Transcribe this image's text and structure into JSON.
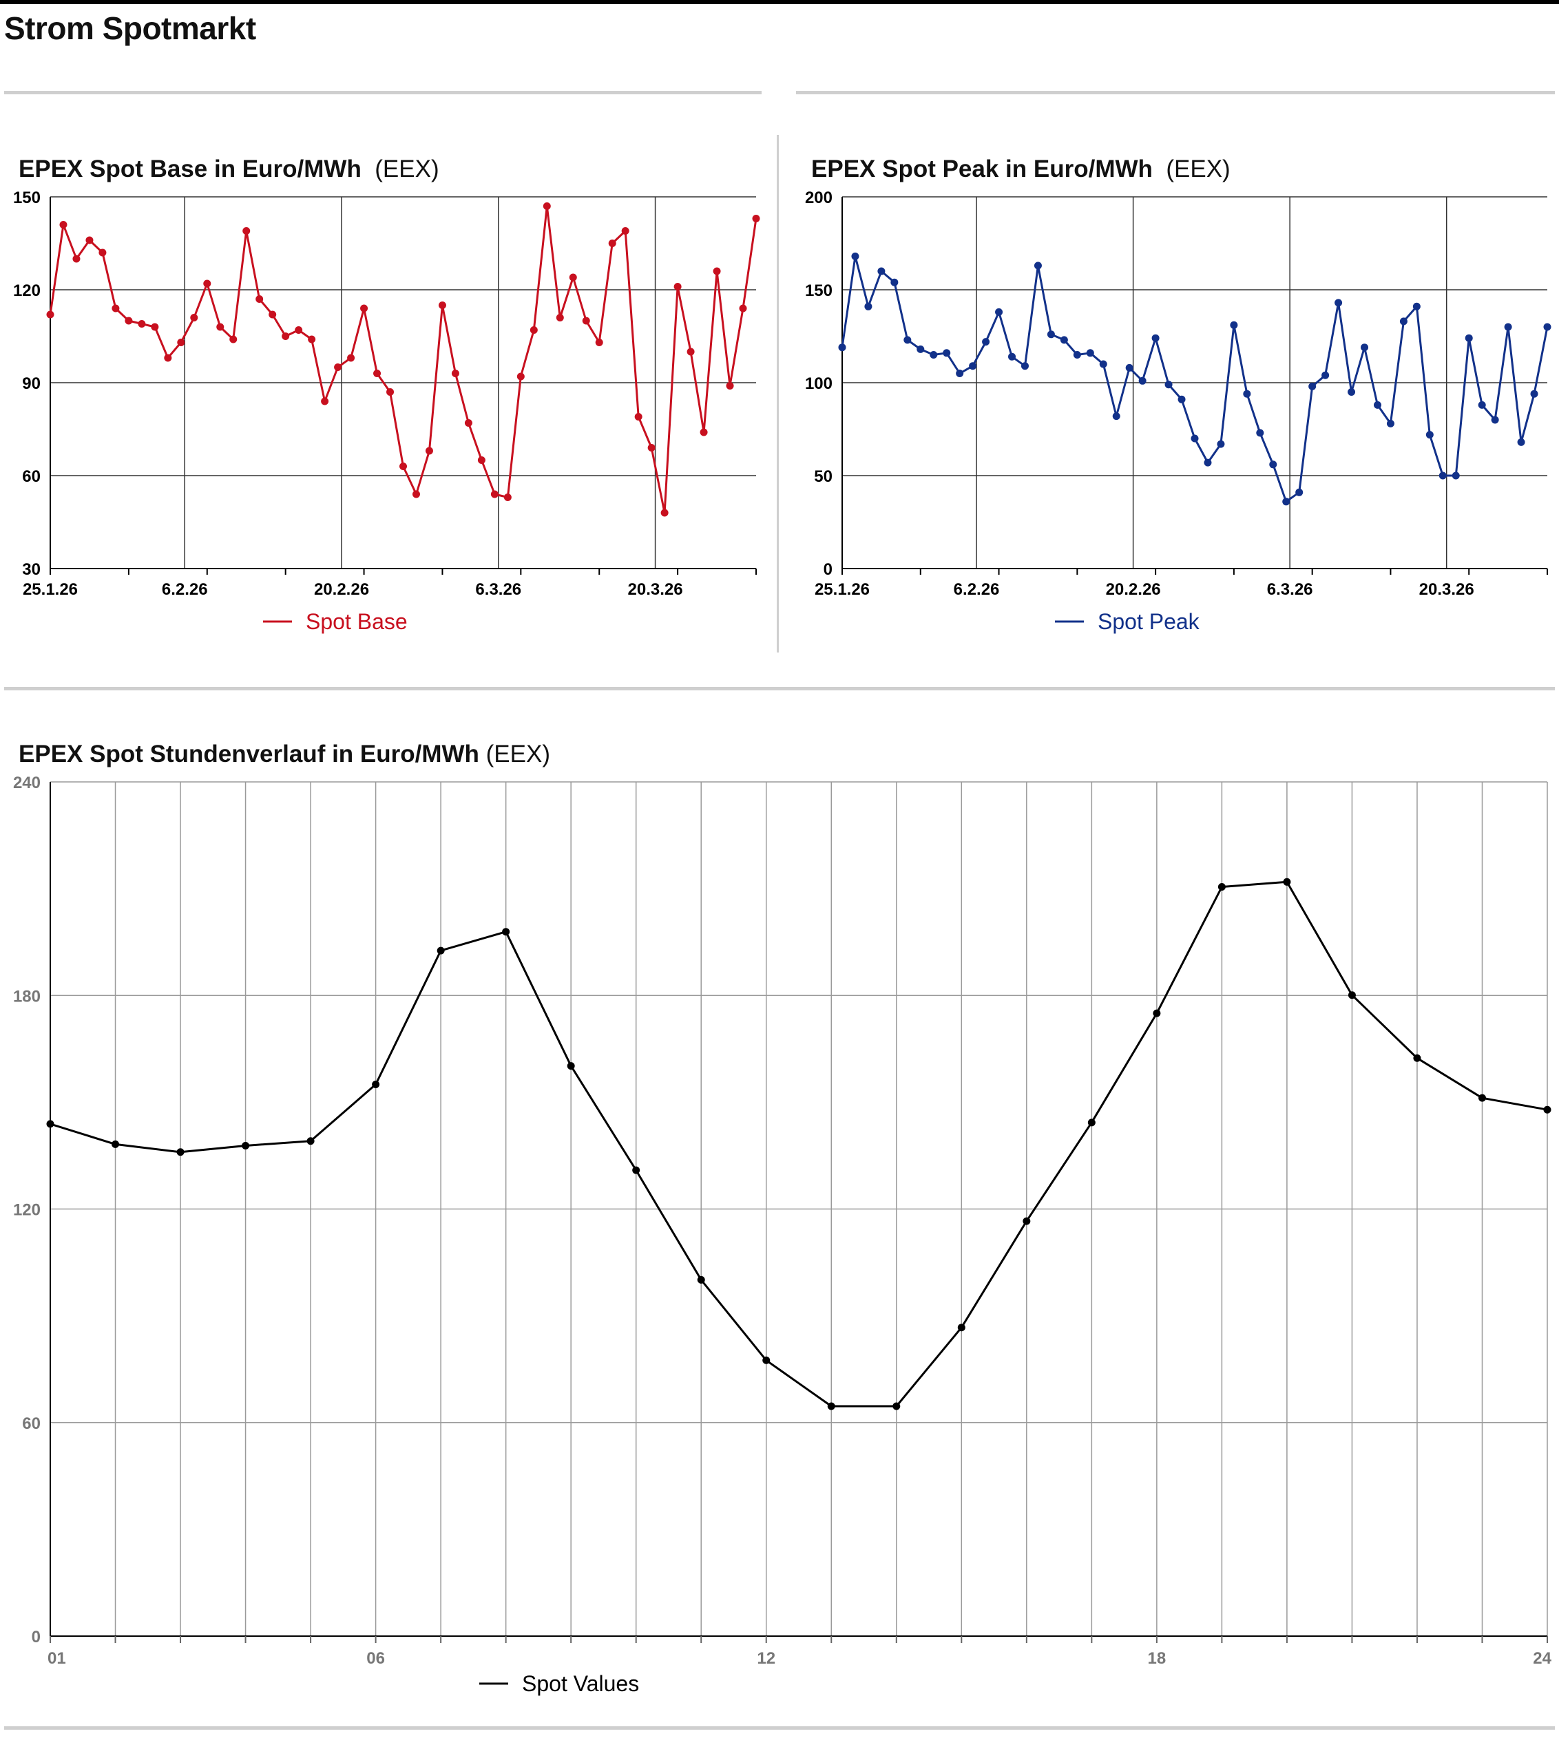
{
  "page": {
    "title": "Strom Spotmarkt"
  },
  "charts": {
    "base": {
      "title": "EPEX Spot Base in Euro/MWh",
      "source": "(EEX)",
      "color": "#c8101f",
      "legend": "Spot Base"
    },
    "peak": {
      "title": "EPEX Spot Peak in Euro/MWh",
      "source": "(EEX)",
      "color": "#12318a",
      "legend": "Spot Peak"
    },
    "hourly": {
      "title": "EPEX Spot Stundenverlauf in Euro/MWh",
      "source": "(EEX)",
      "color": "#000000",
      "legend": "Spot Values"
    }
  },
  "chart_data": [
    {
      "type": "line",
      "title": "EPEX Spot Base in Euro/MWh",
      "source": "(EEX)",
      "x_start": "25.1.26",
      "x_end": "29.3.26",
      "x_ticks": [
        "25.1.26",
        "6.2.26",
        "20.2.26",
        "6.3.26",
        "20.3.26"
      ],
      "ylim": [
        30,
        150
      ],
      "y_ticks": [
        30,
        60,
        90,
        120,
        150
      ],
      "grid": true,
      "legend_position": "bottom-center",
      "series": [
        {
          "name": "Spot Base",
          "color": "#c8101f",
          "values": [
            112,
            141,
            130,
            136,
            132,
            114,
            110,
            109,
            108,
            98,
            103,
            111,
            122,
            108,
            104,
            139,
            117,
            112,
            105,
            107,
            104,
            84,
            95,
            98,
            114,
            93,
            87,
            63,
            54,
            68,
            115,
            93,
            77,
            65,
            54,
            53,
            92,
            107,
            147,
            111,
            124,
            110,
            103,
            135,
            139,
            79,
            69,
            48,
            121,
            100,
            74,
            126,
            89,
            114,
            143
          ]
        }
      ]
    },
    {
      "type": "line",
      "title": "EPEX Spot Peak in Euro/MWh",
      "source": "(EEX)",
      "x_start": "25.1.26",
      "x_end": "29.3.26",
      "x_ticks": [
        "25.1.26",
        "6.2.26",
        "20.2.26",
        "6.3.26",
        "20.3.26"
      ],
      "ylim": [
        0,
        200
      ],
      "y_ticks": [
        0,
        50,
        100,
        150,
        200
      ],
      "grid": true,
      "legend_position": "bottom-center",
      "series": [
        {
          "name": "Spot Peak",
          "color": "#12318a",
          "values": [
            119,
            168,
            141,
            160,
            154,
            123,
            118,
            115,
            116,
            105,
            109,
            122,
            138,
            114,
            109,
            163,
            126,
            123,
            115,
            116,
            110,
            82,
            108,
            101,
            124,
            99,
            91,
            70,
            57,
            67,
            131,
            94,
            73,
            56,
            36,
            41,
            98,
            104,
            143,
            95,
            119,
            88,
            78,
            133,
            141,
            72,
            50,
            50,
            124,
            88,
            80,
            130,
            68,
            94,
            130
          ]
        }
      ]
    },
    {
      "type": "line",
      "title": "EPEX Spot Stundenverlauf in Euro/MWh",
      "source": "(EEX)",
      "x_ticks": [
        "01",
        "06",
        "12",
        "18",
        "24"
      ],
      "ylim": [
        0,
        240
      ],
      "y_ticks": [
        0,
        60,
        120,
        180,
        240
      ],
      "grid": true,
      "legend_position": "bottom-center",
      "series": [
        {
          "name": "Spot Values",
          "color": "#000000",
          "x": [
            1,
            2,
            3,
            4,
            5,
            6,
            7,
            8,
            9,
            10,
            11,
            12,
            13,
            14,
            15,
            16,
            17,
            18,
            19,
            20,
            21,
            22,
            23,
            24
          ],
          "values": [
            143.9,
            138.2,
            136.0,
            137.8,
            139.1,
            155.0,
            192.6,
            197.9,
            160.2,
            130.9,
            100.1,
            77.5,
            64.6,
            64.6,
            86.7,
            116.6,
            144.3,
            175.0,
            210.5,
            211.9,
            180.1,
            162.4,
            151.2,
            147.9
          ]
        }
      ]
    }
  ]
}
